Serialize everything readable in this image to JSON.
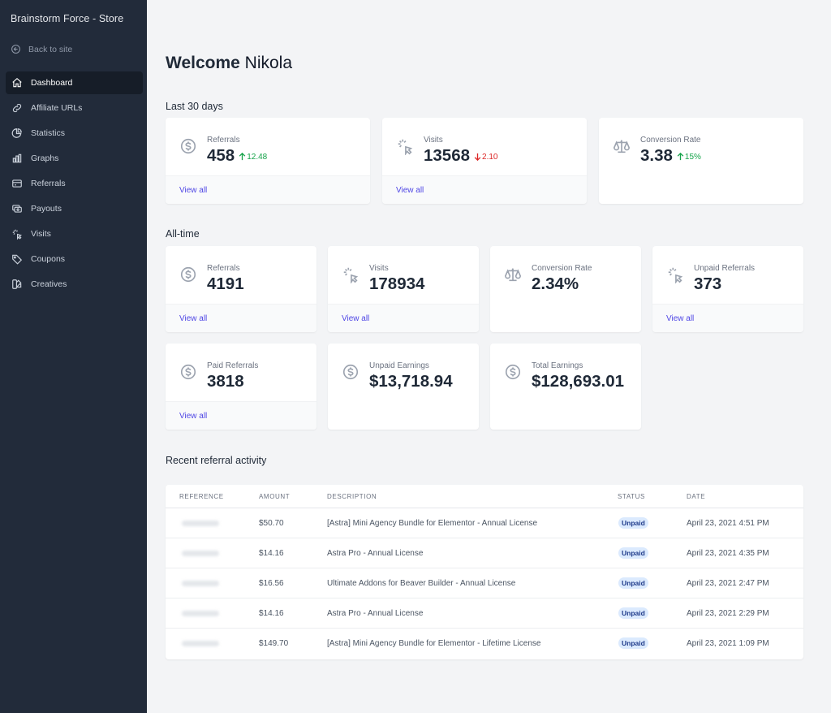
{
  "sidebar": {
    "store_name": "Brainstorm Force - Store",
    "back_label": "Back to site",
    "items": [
      {
        "label": "Dashboard",
        "icon": "home-icon"
      },
      {
        "label": "Affiliate URLs",
        "icon": "link-icon"
      },
      {
        "label": "Statistics",
        "icon": "pie-chart-icon"
      },
      {
        "label": "Graphs",
        "icon": "bar-chart-icon"
      },
      {
        "label": "Referrals",
        "icon": "credit-card-icon"
      },
      {
        "label": "Payouts",
        "icon": "cash-icon"
      },
      {
        "label": "Visits",
        "icon": "cursor-click-icon"
      },
      {
        "label": "Coupons",
        "icon": "tag-icon"
      },
      {
        "label": "Creatives",
        "icon": "color-swatch-icon"
      }
    ]
  },
  "welcome": {
    "prefix": "Welcome",
    "name": "Nikola"
  },
  "last30": {
    "title": "Last 30 days",
    "cards": [
      {
        "label": "Referrals",
        "value": "458",
        "delta": "12.48",
        "direction": "up",
        "link": "View all",
        "icon": "dollar-circle-icon"
      },
      {
        "label": "Visits",
        "value": "13568",
        "delta": "2.10",
        "direction": "down",
        "link": "View all",
        "icon": "cursor-click-icon"
      },
      {
        "label": "Conversion Rate",
        "value": "3.38",
        "delta": "15%",
        "direction": "up",
        "link": "",
        "icon": "scale-icon"
      }
    ]
  },
  "alltime": {
    "title": "All-time",
    "cards": [
      {
        "label": "Referrals",
        "value": "4191",
        "link": "View all",
        "icon": "dollar-circle-icon"
      },
      {
        "label": "Visits",
        "value": "178934",
        "link": "View all",
        "icon": "cursor-click-icon"
      },
      {
        "label": "Conversion Rate",
        "value": "2.34%",
        "link": "",
        "icon": "scale-icon"
      },
      {
        "label": "Unpaid Referrals",
        "value": "373",
        "link": "View all",
        "icon": "cursor-click-icon"
      },
      {
        "label": "Paid Referrals",
        "value": "3818",
        "link": "View all",
        "icon": "dollar-circle-icon"
      },
      {
        "label": "Unpaid Earnings",
        "value": "$13,718.94",
        "link": "",
        "icon": "dollar-circle-icon"
      },
      {
        "label": "Total Earnings",
        "value": "$128,693.01",
        "link": "",
        "icon": "dollar-circle-icon"
      }
    ]
  },
  "recent": {
    "title": "Recent referral activity",
    "columns": [
      "REFERENCE",
      "AMOUNT",
      "DESCRIPTION",
      "STATUS",
      "DATE"
    ],
    "rows": [
      {
        "amount": "$50.70",
        "description": "[Astra] Mini Agency Bundle for Elementor - Annual License",
        "status": "Unpaid",
        "date": "April 23, 2021 4:51 PM"
      },
      {
        "amount": "$14.16",
        "description": "Astra Pro - Annual License",
        "status": "Unpaid",
        "date": "April 23, 2021 4:35 PM"
      },
      {
        "amount": "$16.56",
        "description": "Ultimate Addons for Beaver Builder - Annual License",
        "status": "Unpaid",
        "date": "April 23, 2021 2:47 PM"
      },
      {
        "amount": "$14.16",
        "description": "Astra Pro - Annual License",
        "status": "Unpaid",
        "date": "April 23, 2021 2:29 PM"
      },
      {
        "amount": "$149.70",
        "description": "[Astra] Mini Agency Bundle for Elementor - Lifetime License",
        "status": "Unpaid",
        "date": "April 23, 2021 1:09 PM"
      }
    ]
  },
  "colors": {
    "sidebar": "#222b3a",
    "accent": "#4f46e5",
    "up": "#16a34a",
    "down": "#dc2626",
    "badge_bg": "#dbeafe"
  }
}
